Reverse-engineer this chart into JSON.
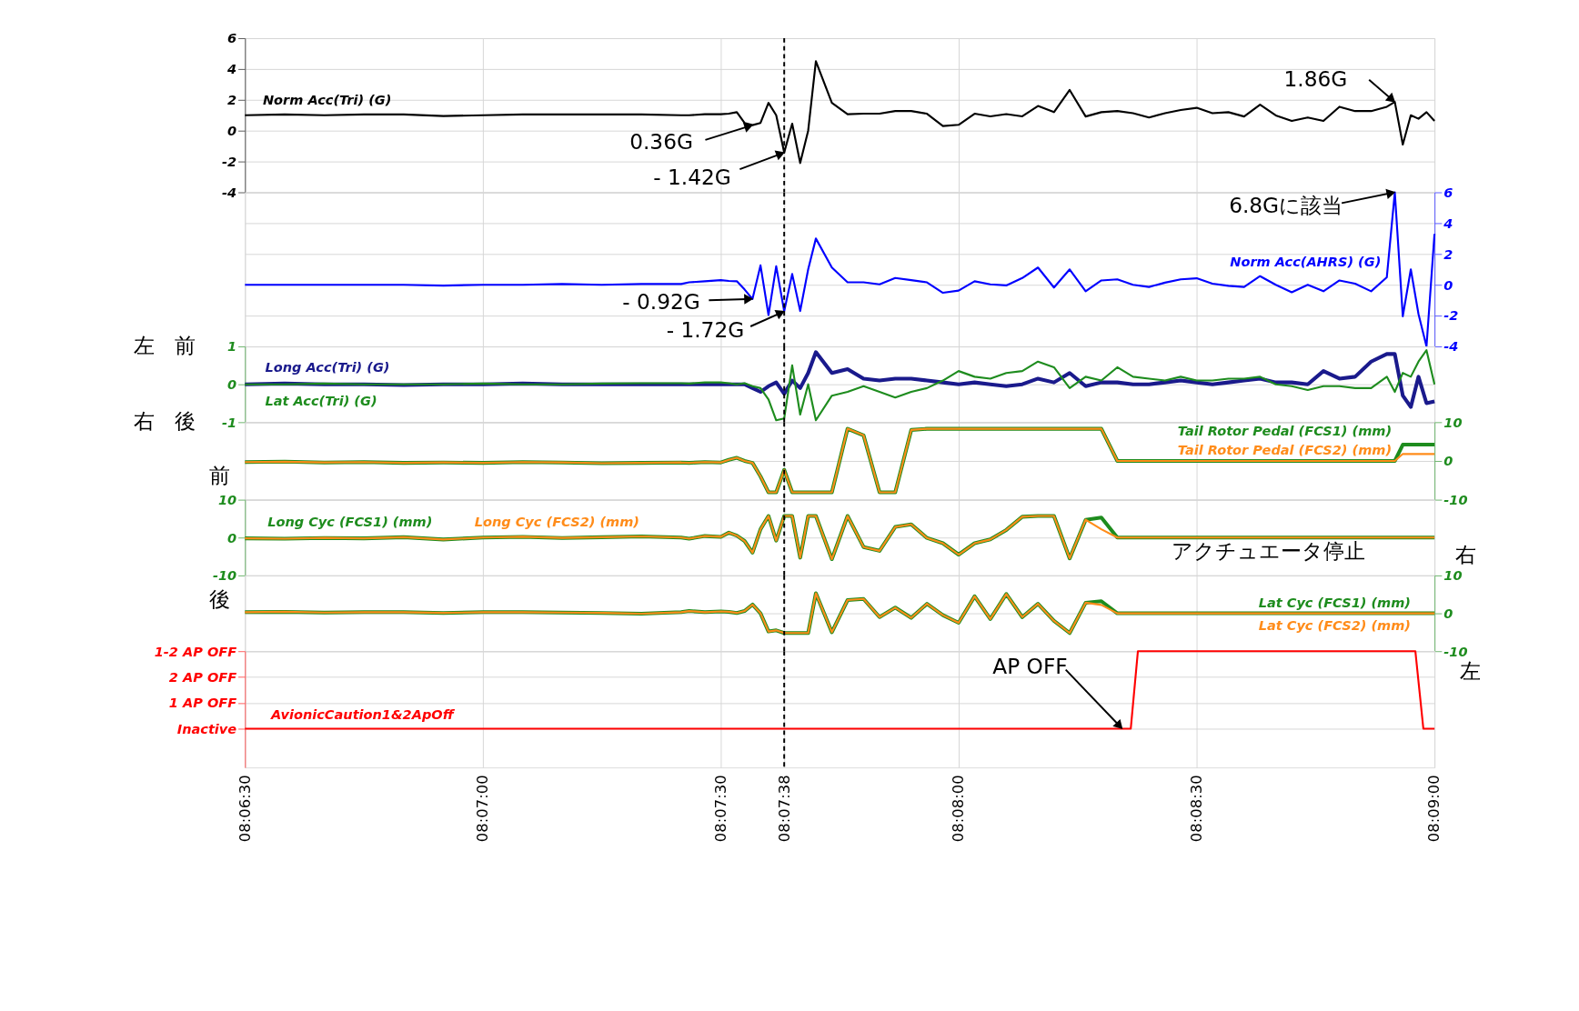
{
  "chart_data": [
    {
      "type": "line",
      "xlim": [
        8.10833,
        8.15
      ],
      "ylim": [
        -4,
        6
      ],
      "yticks": [
        -4,
        -2,
        0,
        2,
        4,
        6
      ],
      "grid": true,
      "tick_labels": "y",
      "xticks": [
        8.10833,
        8.11667,
        8.125,
        8.12722,
        8.13333,
        8.14167,
        8.15
      ],
      "x": [
        8.10833,
        8.10972,
        8.11111,
        8.1125,
        8.11389,
        8.11528,
        8.11667,
        8.11806,
        8.11944,
        8.12083,
        8.12222,
        8.12361,
        8.12389,
        8.12444,
        8.125,
        8.12528,
        8.12556,
        8.12583,
        8.12611,
        8.12639,
        8.12667,
        8.12694,
        8.12722,
        8.1275,
        8.12778,
        8.12806,
        8.12833,
        8.12889,
        8.12944,
        8.13,
        8.13056,
        8.13111,
        8.13167,
        8.13222,
        8.13278,
        8.13333,
        8.13389,
        8.13444,
        8.135,
        8.13556,
        8.13611,
        8.13667,
        8.13722,
        8.13778,
        8.13833,
        8.13889,
        8.13944,
        8.14,
        8.14056,
        8.14111,
        8.14167,
        8.14222,
        8.14278,
        8.14333,
        8.14389,
        8.14444,
        8.145,
        8.14556,
        8.14611,
        8.14667,
        8.14722,
        8.14778,
        8.14833,
        8.14861,
        8.14889,
        8.14917,
        8.14944,
        8.14972,
        8.15
      ],
      "series": [
        {
          "name": "Norm Acc(Tri) (G)",
          "color": "#000000",
          "values": [
            1.0,
            1.05,
            1.0,
            1.05,
            1.05,
            0.95,
            1.0,
            1.05,
            1.05,
            1.05,
            1.05,
            1.0,
            1.0,
            1.07,
            1.07,
            1.1,
            1.2,
            0.5,
            0.36,
            0.5,
            1.8,
            1.0,
            -1.42,
            0.45,
            -2.1,
            0.0,
            4.5,
            1.8,
            1.07,
            1.1,
            1.1,
            1.27,
            1.27,
            1.1,
            0.3,
            0.38,
            1.1,
            0.93,
            1.07,
            0.93,
            1.6,
            1.2,
            2.64,
            0.92,
            1.2,
            1.27,
            1.13,
            0.85,
            1.13,
            1.34,
            1.48,
            1.13,
            1.2,
            0.92,
            1.69,
            0.99,
            0.63,
            0.85,
            0.63,
            1.55,
            1.27,
            1.27,
            1.55,
            1.86,
            -0.9,
            1.0,
            0.77,
            1.2,
            0.63
          ]
        }
      ],
      "ref_lines": [
        {
          "axis": "x",
          "value": 8.12722,
          "color": "#000000",
          "line_style": "dashed"
        }
      ],
      "annotations": [
        {
          "text": "0.36G",
          "x": 8.12611,
          "y": 0.36
        },
        {
          "text": "- 1.42G",
          "x": 8.12722,
          "y": -1.42
        },
        {
          "text": "1.86G",
          "x": 8.14861,
          "y": 1.86
        }
      ]
    },
    {
      "type": "line",
      "xlim": [
        8.10833,
        8.15
      ],
      "ylim": [
        -4,
        6
      ],
      "yticks": [
        -4,
        -2,
        0,
        2,
        4,
        6
      ],
      "grid": true,
      "tick_labels": "y",
      "xticks": [
        8.10833,
        8.11667,
        8.125,
        8.12722,
        8.13333,
        8.14167,
        8.15
      ],
      "x": [
        8.10833,
        8.10972,
        8.11111,
        8.1125,
        8.11389,
        8.11528,
        8.11667,
        8.11806,
        8.11944,
        8.12083,
        8.12222,
        8.12361,
        8.12389,
        8.12444,
        8.125,
        8.12528,
        8.12556,
        8.12583,
        8.12611,
        8.12639,
        8.12667,
        8.12694,
        8.12722,
        8.1275,
        8.12778,
        8.12806,
        8.12833,
        8.12889,
        8.12944,
        8.13,
        8.13056,
        8.13111,
        8.13167,
        8.13222,
        8.13278,
        8.13333,
        8.13389,
        8.13444,
        8.135,
        8.13556,
        8.13611,
        8.13667,
        8.13722,
        8.13778,
        8.13833,
        8.13889,
        8.13944,
        8.14,
        8.14056,
        8.14111,
        8.14167,
        8.14222,
        8.14278,
        8.14333,
        8.14389,
        8.14444,
        8.145,
        8.14556,
        8.14611,
        8.14667,
        8.14722,
        8.14778,
        8.14833,
        8.14861,
        8.14889,
        8.14917,
        8.14944,
        8.14972,
        8.15
      ],
      "series": [
        {
          "name": "Norm Acc(AHRS) (G)",
          "color": "#0000ff",
          "values": [
            0,
            0,
            0,
            0,
            0,
            -0.05,
            0,
            0,
            0.05,
            0,
            0.05,
            0.05,
            0.16,
            0.23,
            0.3,
            0.25,
            0.23,
            -0.3,
            -0.92,
            1.26,
            -1.96,
            1.2,
            -1.72,
            0.7,
            -1.7,
            1.0,
            3.0,
            1.12,
            0.16,
            0.16,
            0.03,
            0.44,
            0.3,
            0.16,
            -0.52,
            -0.38,
            0.23,
            0.03,
            -0.04,
            0.44,
            1.12,
            -0.18,
            1.0,
            -0.42,
            0.28,
            0.35,
            0,
            -0.14,
            0.14,
            0.35,
            0.42,
            0.07,
            -0.07,
            -0.14,
            0.56,
            0,
            -0.49,
            0,
            -0.42,
            0.28,
            0.07,
            -0.42,
            0.49,
            6,
            -2.04,
            1.0,
            -1.9,
            -4.0,
            3.3
          ]
        }
      ],
      "ref_lines": [
        {
          "axis": "x",
          "value": 8.12722,
          "color": "#000000",
          "line_style": "dashed"
        }
      ],
      "annotations": [
        {
          "text": "- 0.92G",
          "x": 8.12611,
          "y": -0.92
        },
        {
          "text": "- 1.72G",
          "x": 8.12722,
          "y": -1.72
        },
        {
          "text": "6.8Gに該当",
          "x": 8.14861,
          "y": 6
        }
      ]
    },
    {
      "type": "line",
      "xlim": [
        8.10833,
        8.15
      ],
      "ylim": [
        -1,
        1
      ],
      "yticks": [
        -1,
        0,
        1
      ],
      "grid": true,
      "tick_labels": "y",
      "xticks": [
        8.10833,
        8.11667,
        8.125,
        8.12722,
        8.13333,
        8.14167,
        8.15
      ],
      "x": [
        8.10833,
        8.10972,
        8.11111,
        8.1125,
        8.11389,
        8.11528,
        8.11667,
        8.11806,
        8.11944,
        8.12083,
        8.12222,
        8.12361,
        8.12389,
        8.12444,
        8.125,
        8.12528,
        8.12556,
        8.12583,
        8.12611,
        8.12639,
        8.12667,
        8.12694,
        8.12722,
        8.1275,
        8.12778,
        8.12806,
        8.12833,
        8.12889,
        8.12944,
        8.13,
        8.13056,
        8.13111,
        8.13167,
        8.13222,
        8.13278,
        8.13333,
        8.13389,
        8.13444,
        8.135,
        8.13556,
        8.13611,
        8.13667,
        8.13722,
        8.13778,
        8.13833,
        8.13889,
        8.13944,
        8.14,
        8.14056,
        8.14111,
        8.14167,
        8.14222,
        8.14278,
        8.14333,
        8.14389,
        8.14444,
        8.145,
        8.14556,
        8.14611,
        8.14667,
        8.14722,
        8.14778,
        8.14833,
        8.14861,
        8.14889,
        8.14917,
        8.14944,
        8.14972,
        8.15
      ],
      "series": [
        {
          "name": "Long Acc(Tri) (G)",
          "color": "#1a1a8c",
          "values": [
            0,
            0.02,
            0,
            0,
            -0.02,
            0,
            0,
            0.02,
            0,
            0,
            0,
            0,
            0,
            0,
            0,
            0,
            0,
            0,
            -0.1,
            -0.2,
            -0.05,
            0.05,
            -0.25,
            0.1,
            -0.1,
            0.3,
            0.85,
            0.3,
            0.4,
            0.15,
            0.1,
            0.15,
            0.15,
            0.1,
            0.05,
            0.0,
            0.05,
            0.0,
            -0.05,
            0.0,
            0.15,
            0.05,
            0.3,
            -0.05,
            0.05,
            0.05,
            0.0,
            0.0,
            0.05,
            0.1,
            0.05,
            0.0,
            0.05,
            0.1,
            0.15,
            0.05,
            0.05,
            0.0,
            0.35,
            0.15,
            0.2,
            0.6,
            0.8,
            0.8,
            -0.3,
            -0.6,
            0.2,
            -0.5,
            -0.45
          ]
        },
        {
          "name": "Lat Acc(Tri) (G)",
          "color": "#1e8c1e",
          "values": [
            0,
            0,
            0.02,
            0,
            0,
            0,
            0.02,
            0,
            0,
            0.02,
            0.03,
            0.03,
            0.02,
            0.05,
            0.05,
            0.03,
            0.0,
            0.03,
            -0.05,
            -0.1,
            -0.4,
            -0.95,
            -0.9,
            0.5,
            -0.8,
            0.0,
            -0.95,
            -0.3,
            -0.2,
            -0.05,
            -0.2,
            -0.35,
            -0.2,
            -0.1,
            0.1,
            0.35,
            0.2,
            0.15,
            0.3,
            0.35,
            0.6,
            0.45,
            -0.1,
            0.2,
            0.1,
            0.45,
            0.2,
            0.15,
            0.1,
            0.2,
            0.1,
            0.1,
            0.15,
            0.15,
            0.2,
            0.0,
            -0.05,
            -0.15,
            -0.05,
            -0.05,
            -0.1,
            -0.1,
            0.2,
            -0.2,
            0.3,
            0.2,
            0.6,
            0.9,
            0.0
          ]
        }
      ],
      "ref_lines": [
        {
          "axis": "x",
          "value": 8.12722,
          "color": "#000000",
          "line_style": "dashed"
        }
      ],
      "annotations": [
        "左",
        "前",
        "右",
        "後"
      ]
    },
    {
      "type": "line",
      "xlim": [
        8.10833,
        8.15
      ],
      "ylim": [
        -10,
        10
      ],
      "yticks": [
        -10,
        0,
        10
      ],
      "grid": true,
      "tick_labels": "y",
      "xticks": [
        8.10833,
        8.11667,
        8.125,
        8.12722,
        8.13333,
        8.14167,
        8.15
      ],
      "x": [
        8.10833,
        8.10972,
        8.11111,
        8.1125,
        8.11389,
        8.11528,
        8.11667,
        8.11806,
        8.11944,
        8.12083,
        8.12222,
        8.12361,
        8.12389,
        8.12444,
        8.125,
        8.12528,
        8.12556,
        8.12583,
        8.12611,
        8.12639,
        8.12667,
        8.12694,
        8.12722,
        8.1275,
        8.12778,
        8.12806,
        8.12833,
        8.12889,
        8.12944,
        8.13,
        8.13056,
        8.13111,
        8.13167,
        8.13222,
        8.13278,
        8.13333,
        8.13389,
        8.13444,
        8.135,
        8.13556,
        8.13611,
        8.13667,
        8.13722,
        8.13778,
        8.13833,
        8.13889,
        8.13944,
        8.14,
        8.14056,
        8.14111,
        8.14167,
        8.14222,
        8.14278,
        8.14333,
        8.14389,
        8.14444,
        8.145,
        8.14556,
        8.14611,
        8.14667,
        8.14722,
        8.14778,
        8.14833,
        8.14861,
        8.14889,
        8.14917,
        8.14944,
        8.14972,
        8.15
      ],
      "series": [
        {
          "name": "Tail Rotor Pedal (FCS1) (mm)",
          "color": "#1e8c1e",
          "values": [
            -0.3,
            -0.2,
            -0.4,
            -0.3,
            -0.5,
            -0.4,
            -0.5,
            -0.3,
            -0.4,
            -0.6,
            -0.5,
            -0.4,
            -0.5,
            -0.3,
            -0.4,
            0.3,
            0.8,
            0.0,
            -0.5,
            -4,
            -8.1,
            -8.1,
            -2.3,
            -8.1,
            -8.1,
            -8.1,
            -8.1,
            -8.1,
            8.3,
            6.6,
            -8.1,
            -8.1,
            8.0,
            8.3,
            8.3,
            8.3,
            8.3,
            8.3,
            8.3,
            8.3,
            8.3,
            8.3,
            8.3,
            8.3,
            8.3,
            0,
            0,
            0,
            0,
            0,
            0,
            0,
            0,
            0,
            0,
            0,
            0,
            0,
            0,
            0,
            0,
            0,
            0,
            0,
            4.2,
            4.2,
            4.2,
            4.2,
            4.2
          ]
        },
        {
          "name": "Tail Rotor Pedal (FCS2) (mm)",
          "color": "#ff8c1a",
          "values": [
            -0.3,
            -0.2,
            -0.4,
            -0.3,
            -0.5,
            -0.4,
            -0.5,
            -0.3,
            -0.4,
            -0.6,
            -0.5,
            -0.4,
            -0.5,
            -0.3,
            -0.4,
            0.3,
            0.8,
            0.0,
            -0.5,
            -4,
            -8.1,
            -8.1,
            -2.3,
            -8.1,
            -8.1,
            -8.1,
            -8.1,
            -8.1,
            8.3,
            6.6,
            -8.1,
            -8.1,
            8.0,
            8.3,
            8.3,
            8.3,
            8.3,
            8.3,
            8.3,
            8.3,
            8.3,
            8.3,
            8.3,
            8.3,
            8.3,
            0,
            0,
            0,
            0,
            0,
            0,
            0,
            0,
            0,
            0,
            0,
            0,
            0,
            0,
            0,
            0,
            0,
            0,
            0,
            1.8,
            1.8,
            1.8,
            1.8,
            1.8
          ]
        }
      ],
      "ref_lines": [
        {
          "axis": "x",
          "value": 8.12722,
          "color": "#000000",
          "line_style": "dashed"
        }
      ]
    },
    {
      "type": "line",
      "xlim": [
        8.10833,
        8.15
      ],
      "ylim": [
        -10,
        10
      ],
      "yticks": [
        -10,
        0,
        10
      ],
      "grid": true,
      "tick_labels": "y",
      "xticks": [
        8.10833,
        8.11667,
        8.125,
        8.12722,
        8.13333,
        8.14167,
        8.15
      ],
      "x": [
        8.10833,
        8.10972,
        8.11111,
        8.1125,
        8.11389,
        8.11528,
        8.11667,
        8.11806,
        8.11944,
        8.12083,
        8.12222,
        8.12361,
        8.12389,
        8.12444,
        8.125,
        8.12528,
        8.12556,
        8.12583,
        8.12611,
        8.12639,
        8.12667,
        8.12694,
        8.12722,
        8.1275,
        8.12778,
        8.12806,
        8.12833,
        8.12889,
        8.12944,
        8.13,
        8.13056,
        8.13111,
        8.13167,
        8.13222,
        8.13278,
        8.13333,
        8.13389,
        8.13444,
        8.135,
        8.13556,
        8.13611,
        8.13667,
        8.13722,
        8.13778,
        8.13833,
        8.13889,
        8.13944,
        8.14,
        8.14056,
        8.14111,
        8.14167,
        8.14222,
        8.14278,
        8.14333,
        8.14389,
        8.14444,
        8.145,
        8.14556,
        8.14611,
        8.14667,
        8.14722,
        8.14778,
        8.14833,
        8.14861,
        8.14889,
        8.14917,
        8.14944,
        8.14972,
        8.15
      ],
      "series": [
        {
          "name": "Long Cyc (FCS1) (mm)",
          "color": "#1e8c1e",
          "values": [
            -0.2,
            -0.3,
            -0.1,
            -0.2,
            0.1,
            -0.5,
            0.0,
            0.2,
            -0.1,
            0.1,
            0.3,
            0.0,
            -0.3,
            0.4,
            0.2,
            1.3,
            0.5,
            -0.9,
            -4,
            2.2,
            5.7,
            -0.8,
            5.7,
            5.7,
            -5.3,
            5.7,
            5.7,
            -5.7,
            5.7,
            -2.5,
            -3.5,
            2.8,
            3.5,
            -0.1,
            -1.5,
            -4.5,
            -1.5,
            -0.5,
            2,
            5.5,
            5.7,
            5.7,
            -5.5,
            4.7,
            5.3,
            0,
            0,
            0,
            0,
            0,
            0,
            0,
            0,
            0,
            0,
            0,
            0,
            0,
            0,
            0,
            0,
            0,
            0,
            0,
            0,
            0,
            0,
            0,
            0
          ]
        },
        {
          "name": "Long Cyc (FCS2) (mm)",
          "color": "#ff8c1a",
          "values": [
            -0.2,
            -0.3,
            -0.1,
            -0.2,
            0.1,
            -0.5,
            0.0,
            0.2,
            -0.1,
            0.1,
            0.3,
            0.0,
            -0.3,
            0.4,
            0.2,
            1.3,
            0.5,
            -0.9,
            -4,
            2.2,
            5.7,
            -0.8,
            5.7,
            5.7,
            -5.3,
            5.7,
            5.7,
            -5.7,
            5.7,
            -2.5,
            -3.5,
            2.8,
            3.5,
            -0.1,
            -1.5,
            -4.5,
            -1.5,
            -0.5,
            2,
            5.5,
            5.7,
            5.7,
            -5.5,
            4.7,
            2.2,
            0,
            0,
            0,
            0,
            0,
            0,
            0,
            0,
            0,
            0,
            0,
            0,
            0,
            0,
            0,
            0,
            0,
            0,
            0,
            0,
            0,
            0,
            0,
            0
          ]
        }
      ],
      "ref_lines": [
        {
          "axis": "x",
          "value": 8.12722,
          "color": "#000000",
          "line_style": "dashed"
        }
      ],
      "annotations": [
        "前",
        "後",
        "アクチュエータ停止"
      ]
    },
    {
      "type": "line",
      "xlim": [
        8.10833,
        8.15
      ],
      "ylim": [
        -10,
        10
      ],
      "yticks": [
        -10,
        0,
        10
      ],
      "grid": true,
      "tick_labels": "y",
      "xticks": [
        8.10833,
        8.11667,
        8.125,
        8.12722,
        8.13333,
        8.14167,
        8.15
      ],
      "x": [
        8.10833,
        8.10972,
        8.11111,
        8.1125,
        8.11389,
        8.11528,
        8.11667,
        8.11806,
        8.11944,
        8.12083,
        8.12222,
        8.12361,
        8.12389,
        8.12444,
        8.125,
        8.12528,
        8.12556,
        8.12583,
        8.12611,
        8.12639,
        8.12667,
        8.12694,
        8.12722,
        8.1275,
        8.12778,
        8.12806,
        8.12833,
        8.12889,
        8.12944,
        8.13,
        8.13056,
        8.13111,
        8.13167,
        8.13222,
        8.13278,
        8.13333,
        8.13389,
        8.13444,
        8.135,
        8.13556,
        8.13611,
        8.13667,
        8.13722,
        8.13778,
        8.13833,
        8.13889,
        8.13944,
        8.14,
        8.14056,
        8.14111,
        8.14167,
        8.14222,
        8.14278,
        8.14333,
        8.14389,
        8.14444,
        8.145,
        8.14556,
        8.14611,
        8.14667,
        8.14722,
        8.14778,
        8.14833,
        8.14861,
        8.14889,
        8.14917,
        8.14944,
        8.14972,
        8.15
      ],
      "series": [
        {
          "name": "Lat Cyc (FCS1) (mm)",
          "color": "#1e8c1e",
          "values": [
            0.3,
            0.4,
            0.2,
            0.3,
            0.3,
            0.1,
            0.3,
            0.3,
            0.2,
            0.1,
            -0.1,
            0.3,
            0.6,
            0.3,
            0.5,
            0.4,
            0.1,
            0.6,
            2.3,
            0,
            -4.8,
            -4.5,
            -5.2,
            -5.2,
            -5.2,
            -5.2,
            5.3,
            -5,
            3.5,
            3.8,
            -1,
            1.5,
            -1.2,
            2.5,
            -0.5,
            -2.5,
            4.5,
            -1.5,
            5.1,
            -1,
            2.5,
            -2,
            -5.2,
            2.8,
            3.2,
            0,
            0,
            0,
            0,
            0,
            0,
            0,
            0,
            0,
            0,
            0,
            0,
            0,
            0,
            0,
            0,
            0,
            0,
            0,
            0,
            0,
            0,
            0,
            0
          ]
        },
        {
          "name": "Lat Cyc (FCS2) (mm)",
          "color": "#ff8c1a",
          "values": [
            0.3,
            0.4,
            0.2,
            0.3,
            0.3,
            0.1,
            0.3,
            0.3,
            0.2,
            0.1,
            -0.1,
            0.3,
            0.6,
            0.3,
            0.5,
            0.4,
            0.1,
            0.6,
            2.3,
            0,
            -4.8,
            -4.5,
            -5.2,
            -5.2,
            -5.2,
            -5.2,
            5.3,
            -5,
            3.5,
            3.8,
            -1,
            1.5,
            -1.2,
            2.5,
            -0.5,
            -2.5,
            4.5,
            -1.5,
            5.1,
            -1,
            2.5,
            -2,
            -5.2,
            2.8,
            2.2,
            0,
            0,
            0,
            0,
            0,
            0,
            0,
            0,
            0,
            0,
            0,
            0,
            0,
            0,
            0,
            0,
            0,
            0,
            0,
            0,
            0,
            0,
            0,
            0
          ]
        }
      ],
      "ref_lines": [
        {
          "axis": "x",
          "value": 8.12722,
          "color": "#000000",
          "line_style": "dashed"
        }
      ],
      "annotations": [
        "右",
        "左"
      ]
    },
    {
      "type": "line",
      "xlim": [
        8.10833,
        8.15
      ],
      "ylim": [
        -1.5,
        3
      ],
      "yticks": [
        {
          "value": 0,
          "label": "Inactive"
        },
        {
          "value": 1,
          "label": "1 AP OFF"
        },
        {
          "value": 2,
          "label": "2 AP OFF"
        },
        {
          "value": 3,
          "label": "1-2 AP OFF"
        }
      ],
      "grid": true,
      "xticks": [
        {
          "value": 8.10833,
          "label": "08:06:30"
        },
        {
          "value": 8.11667,
          "label": "08:07:00"
        },
        {
          "value": 8.125,
          "label": "08:07:30"
        },
        {
          "value": 8.12722,
          "label": "08:07:38"
        },
        {
          "value": 8.13333,
          "label": "08:08:00"
        },
        {
          "value": 8.14167,
          "label": "08:08:30"
        },
        {
          "value": 8.15,
          "label": "08:09:00"
        }
      ],
      "series": [
        {
          "name": "AvionicCaution1&2ApOff",
          "color": "#ff0000",
          "x": [
            8.10833,
            8.13936,
            8.13961,
            8.14933,
            8.14961,
            8.15
          ],
          "values": [
            0,
            0,
            3,
            3,
            0,
            0
          ]
        }
      ],
      "ref_lines": [
        {
          "axis": "x",
          "value": 8.12722,
          "color": "#000000",
          "line_style": "dashed"
        }
      ],
      "annotations": [
        {
          "text": "AP OFF",
          "x": 8.13906,
          "y": 0
        }
      ]
    }
  ]
}
